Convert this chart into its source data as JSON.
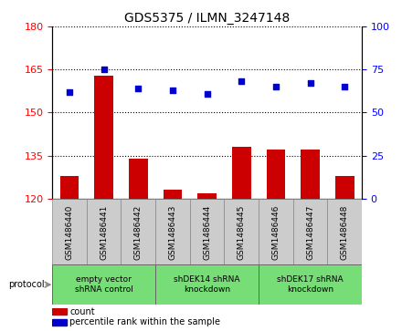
{
  "title": "GDS5375 / ILMN_3247148",
  "samples": [
    "GSM1486440",
    "GSM1486441",
    "GSM1486442",
    "GSM1486443",
    "GSM1486444",
    "GSM1486445",
    "GSM1486446",
    "GSM1486447",
    "GSM1486448"
  ],
  "count_values": [
    128,
    163,
    134,
    123,
    122,
    138,
    137,
    137,
    128
  ],
  "percentile_values": [
    62,
    75,
    64,
    63,
    61,
    68,
    65,
    67,
    65
  ],
  "ylim_left": [
    120,
    180
  ],
  "ylim_right": [
    0,
    100
  ],
  "yticks_left": [
    120,
    135,
    150,
    165,
    180
  ],
  "yticks_right": [
    0,
    25,
    50,
    75,
    100
  ],
  "bar_color": "#cc0000",
  "dot_color": "#0000cc",
  "groups": [
    {
      "label": "empty vector\nshRNA control",
      "start": 0,
      "end": 3,
      "color": "#77dd77"
    },
    {
      "label": "shDEK14 shRNA\nknockdown",
      "start": 3,
      "end": 6,
      "color": "#77dd77"
    },
    {
      "label": "shDEK17 shRNA\nknockdown",
      "start": 6,
      "end": 9,
      "color": "#77dd77"
    }
  ],
  "legend_count_label": "count",
  "legend_percentile_label": "percentile rank within the sample",
  "protocol_label": "protocol",
  "bar_width": 0.55,
  "tick_bg_color": "#cccccc",
  "grid_line_color": "#000000",
  "figure_bg": "#ffffff"
}
